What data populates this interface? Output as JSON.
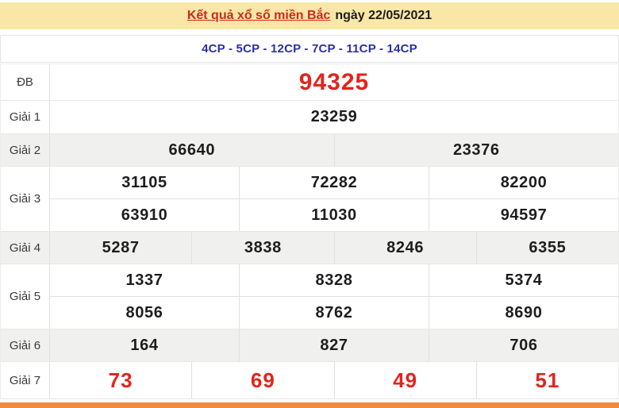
{
  "header": {
    "title_link": "Kết quả xổ số miền Bắc",
    "title_date": "ngày 22/05/2021"
  },
  "subheader": {
    "text": "4CP - 5CP - 12CP - 7CP - 11CP - 14CP"
  },
  "table": {
    "rows": [
      {
        "label": "ĐB",
        "highlight": "special",
        "groups": [
          [
            "94325"
          ]
        ]
      },
      {
        "label": "Giải 1",
        "highlight": "none",
        "groups": [
          [
            "23259"
          ]
        ]
      },
      {
        "label": "Giải 2",
        "highlight": "none",
        "groups": [
          [
            "66640",
            "23376"
          ]
        ]
      },
      {
        "label": "Giải 3",
        "highlight": "none",
        "groups": [
          [
            "31105",
            "72282",
            "82200"
          ],
          [
            "63910",
            "11030",
            "94597"
          ]
        ]
      },
      {
        "label": "Giải 4",
        "highlight": "none",
        "groups": [
          [
            "5287",
            "3838",
            "8246",
            "6355"
          ]
        ]
      },
      {
        "label": "Giải 5",
        "highlight": "none",
        "groups": [
          [
            "1337",
            "8328",
            "5374"
          ],
          [
            "8056",
            "8762",
            "8690"
          ]
        ]
      },
      {
        "label": "Giải 6",
        "highlight": "none",
        "groups": [
          [
            "164",
            "827",
            "706"
          ]
        ]
      },
      {
        "label": "Giải 7",
        "highlight": "red",
        "groups": [
          [
            "73",
            "69",
            "49",
            "51"
          ]
        ]
      }
    ]
  },
  "colors": {
    "header_background": "#f9e7a8",
    "title_red": "#cc2a1a",
    "accent_red": "#e3241d",
    "link_blue": "#2b2fa8",
    "stripe_gray": "#f0f0ef",
    "bottom_orange": "#f18b42",
    "border_gray": "#e0e0e0"
  }
}
